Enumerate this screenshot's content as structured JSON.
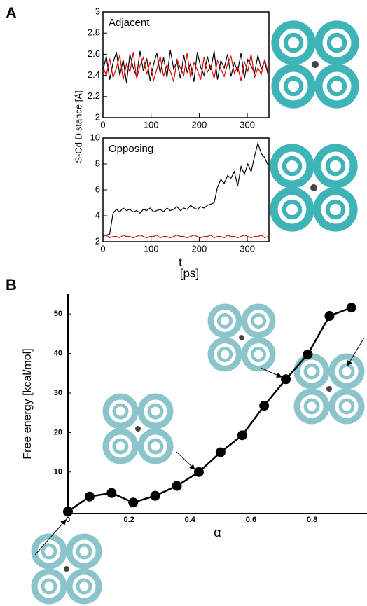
{
  "chart_data": [
    {
      "type": "line",
      "panel": "A",
      "annotation": "Adjacent",
      "y_label": "S-Cd Distance [Å]",
      "xlim": [
        0,
        345
      ],
      "xticks": [
        0,
        100,
        200,
        300
      ],
      "ylim": [
        2,
        3
      ],
      "yticks": [
        2,
        2.2,
        2.4,
        2.6,
        2.8,
        3
      ],
      "x": [
        0,
        7,
        14,
        21,
        28,
        35,
        42,
        49,
        56,
        63,
        70,
        77,
        84,
        91,
        98,
        105,
        112,
        119,
        126,
        133,
        140,
        147,
        154,
        161,
        168,
        175,
        182,
        189,
        196,
        203,
        210,
        217,
        224,
        231,
        238,
        245,
        252,
        259,
        266,
        273,
        280,
        287,
        294,
        301,
        308,
        315,
        322,
        329,
        336,
        343
      ],
      "series": [
        {
          "color": "#000000",
          "values": [
            2.45,
            2.58,
            2.36,
            2.52,
            2.62,
            2.4,
            2.55,
            2.33,
            2.6,
            2.47,
            2.39,
            2.63,
            2.44,
            2.56,
            2.35,
            2.5,
            2.61,
            2.42,
            2.57,
            2.38,
            2.64,
            2.46,
            2.53,
            2.37,
            2.59,
            2.43,
            2.51,
            2.34,
            2.62,
            2.48,
            2.4,
            2.58,
            2.45,
            2.63,
            2.36,
            2.54,
            2.47,
            2.6,
            2.39,
            2.52,
            2.44,
            2.61,
            2.37,
            2.55,
            2.49,
            2.42,
            2.59,
            2.46,
            2.53,
            2.41
          ]
        },
        {
          "color": "#e00000",
          "values": [
            2.48,
            2.4,
            2.56,
            2.38,
            2.47,
            2.59,
            2.36,
            2.51,
            2.43,
            2.62,
            2.37,
            2.49,
            2.57,
            2.41,
            2.53,
            2.35,
            2.46,
            2.58,
            2.39,
            2.5,
            2.44,
            2.34,
            2.55,
            2.47,
            2.4,
            2.61,
            2.38,
            2.52,
            2.45,
            2.36,
            2.57,
            2.43,
            2.49,
            2.37,
            2.54,
            2.46,
            2.39,
            2.51,
            2.58,
            2.42,
            2.48,
            2.35,
            2.53,
            2.44,
            2.6,
            2.38,
            2.47,
            2.41,
            2.55,
            2.43
          ]
        }
      ]
    },
    {
      "type": "line",
      "annotation": "Opposing",
      "x_label": "t",
      "x_unit": "[ps]",
      "xlim": [
        0,
        345
      ],
      "xticks": [
        0,
        100,
        200,
        300
      ],
      "ylim": [
        2,
        10
      ],
      "yticks": [
        2,
        4,
        6,
        8,
        10
      ],
      "x": [
        0,
        7,
        14,
        21,
        28,
        35,
        42,
        49,
        56,
        63,
        70,
        77,
        84,
        91,
        98,
        105,
        112,
        119,
        126,
        133,
        140,
        147,
        154,
        161,
        168,
        175,
        182,
        189,
        196,
        203,
        210,
        217,
        224,
        231,
        238,
        245,
        252,
        259,
        266,
        273,
        280,
        287,
        294,
        301,
        308,
        315,
        322,
        329,
        336,
        343
      ],
      "series": [
        {
          "color": "#000000",
          "values": [
            2.5,
            2.5,
            2.6,
            4.2,
            4.5,
            4.3,
            4.6,
            4.4,
            4.5,
            4.3,
            4.4,
            4.2,
            4.5,
            4.4,
            4.6,
            4.3,
            4.4,
            4.5,
            4.3,
            4.6,
            4.4,
            4.5,
            4.7,
            4.4,
            4.6,
            4.5,
            4.8,
            4.6,
            4.5,
            4.7,
            4.6,
            4.8,
            4.9,
            5.0,
            6.2,
            6.8,
            6.5,
            7.1,
            6.9,
            7.4,
            6.3,
            7.8,
            7.2,
            8.0,
            7.4,
            8.6,
            9.6,
            8.8,
            8.5,
            7.9
          ]
        },
        {
          "color": "#e00000",
          "values": [
            2.4,
            2.5,
            2.3,
            2.4,
            2.4,
            2.3,
            2.5,
            2.4,
            2.4,
            2.3,
            2.4,
            2.5,
            2.4,
            2.3,
            2.4,
            2.4,
            2.5,
            2.3,
            2.4,
            2.4,
            2.3,
            2.4,
            2.5,
            2.4,
            2.4,
            2.3,
            2.4,
            2.5,
            2.4,
            2.3,
            2.4,
            2.4,
            2.5,
            2.3,
            2.4,
            2.4,
            2.3,
            2.5,
            2.4,
            2.4,
            2.3,
            2.4,
            2.5,
            2.4,
            2.3,
            2.4,
            2.4,
            2.5,
            2.3,
            2.4
          ]
        }
      ]
    },
    {
      "type": "line-marker",
      "panel": "B",
      "x_label": "α",
      "y_label": "Free energy [kcal/mol]",
      "xlim": [
        0,
        0.98
      ],
      "xticks": [
        0,
        0.2,
        0.4,
        0.6,
        0.8
      ],
      "ylim": [
        -0.5,
        55
      ],
      "yticks": [
        10,
        20,
        30,
        40,
        50
      ],
      "x": [
        0,
        0.071,
        0.143,
        0.214,
        0.286,
        0.357,
        0.429,
        0.5,
        0.571,
        0.643,
        0.714,
        0.786,
        0.857,
        0.929
      ],
      "series": [
        {
          "color": "#000000",
          "values": [
            0,
            3.8,
            4.7,
            2.3,
            4.0,
            6.5,
            10.0,
            15.0,
            19.3,
            26.8,
            33.5,
            39.8,
            49.5,
            51.6
          ]
        }
      ]
    }
  ]
}
